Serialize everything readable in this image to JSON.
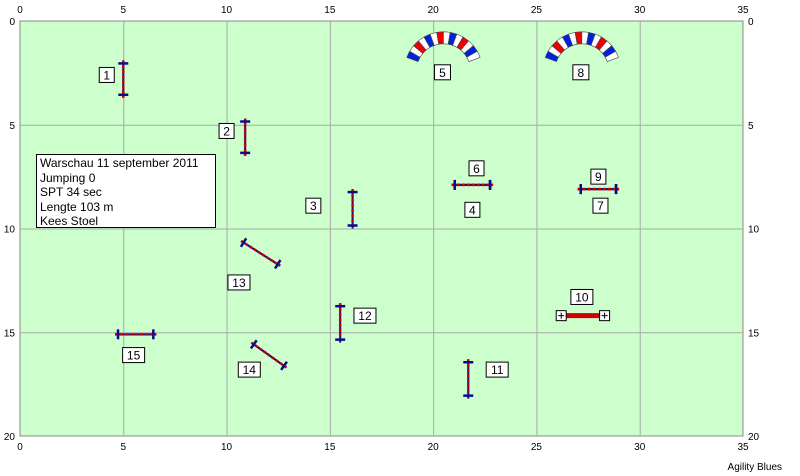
{
  "field": {
    "x_range": [
      0,
      35
    ],
    "y_range": [
      0,
      20
    ],
    "x_ticks": [
      "0",
      "5",
      "10",
      "15",
      "20",
      "25",
      "30",
      "35"
    ],
    "y_ticks": [
      "0",
      "5",
      "10",
      "15",
      "20"
    ],
    "field_color": "#ccffcc",
    "grid_color": "#a8a8a8",
    "grid": true
  },
  "info": {
    "lines": [
      "Warschau 11 september 2011",
      "Jumping 0",
      "SPT 34 sec",
      "Lengte 103 m",
      "Kees Stoel"
    ]
  },
  "credit": "Agility Blues",
  "colors": {
    "pole": "#0a0a8c",
    "bar_red": "#cc0000",
    "bar_light": "#ffdddd",
    "tunnel_red": "#ee0000",
    "tunnel_blue": "#0022dd"
  },
  "tunnels": [
    {
      "label": "5",
      "center": [
        20.5,
        2.4
      ]
    },
    {
      "label": "8",
      "center": [
        27.2,
        2.4
      ]
    }
  ],
  "jumps": [
    {
      "label": "1",
      "type": "jump",
      "x1": 5.0,
      "y1": 1.9,
      "x2": 5.0,
      "y2": 3.7,
      "label_at": [
        4.2,
        2.6
      ]
    },
    {
      "label": "2",
      "type": "jump",
      "x1": 10.9,
      "y1": 4.7,
      "x2": 10.9,
      "y2": 6.5,
      "label_at": [
        10.0,
        5.3
      ]
    },
    {
      "label": "3",
      "type": "jump",
      "x1": 16.1,
      "y1": 8.1,
      "x2": 16.1,
      "y2": 10.0,
      "label_at": [
        14.2,
        8.9
      ]
    },
    {
      "label": "4",
      "type": "jump",
      "x1": 20.9,
      "y1": 7.9,
      "x2": 22.9,
      "y2": 7.9,
      "label_at": [
        21.9,
        9.1
      ]
    },
    {
      "label": "6",
      "type": "jump",
      "x1": 20.9,
      "y1": 7.9,
      "x2": 22.9,
      "y2": 7.9,
      "label_at": [
        22.1,
        7.1
      ]
    },
    {
      "label": "7",
      "type": "jump",
      "x1": 27.0,
      "y1": 8.1,
      "x2": 29.0,
      "y2": 8.1,
      "label_at": [
        28.1,
        8.9
      ]
    },
    {
      "label": "9",
      "type": "jump",
      "x1": 27.0,
      "y1": 8.1,
      "x2": 29.0,
      "y2": 8.1,
      "label_at": [
        28.0,
        7.5
      ]
    },
    {
      "label": "10",
      "type": "wall",
      "x1": 26.2,
      "y1": 14.2,
      "x2": 28.3,
      "y2": 14.2,
      "label_at": [
        27.2,
        13.3
      ]
    },
    {
      "label": "11",
      "type": "jump",
      "x1": 21.7,
      "y1": 16.3,
      "x2": 21.7,
      "y2": 18.2,
      "label_at": [
        23.1,
        16.8
      ]
    },
    {
      "label": "12",
      "type": "jump",
      "x1": 15.5,
      "y1": 13.6,
      "x2": 15.5,
      "y2": 15.5,
      "label_at": [
        16.7,
        14.2
      ]
    },
    {
      "label": "13",
      "type": "jump",
      "x1": 10.7,
      "y1": 10.6,
      "x2": 12.6,
      "y2": 11.8,
      "label_at": [
        10.6,
        12.6
      ]
    },
    {
      "label": "14",
      "type": "jump",
      "x1": 11.2,
      "y1": 15.5,
      "x2": 12.9,
      "y2": 16.7,
      "label_at": [
        11.1,
        16.8
      ]
    },
    {
      "label": "15",
      "type": "jump",
      "x1": 4.6,
      "y1": 15.1,
      "x2": 6.6,
      "y2": 15.1,
      "label_at": [
        5.5,
        16.1
      ]
    }
  ]
}
